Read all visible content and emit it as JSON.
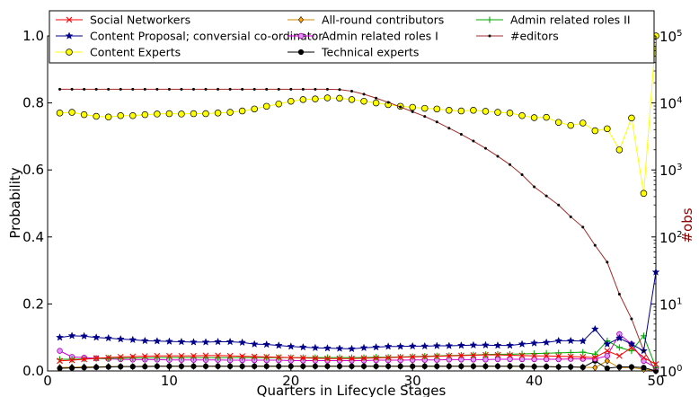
{
  "chart_data": {
    "type": "line",
    "title": "",
    "xlabel": "Quarters in Lifecycle Stages",
    "ylabel": "Probability",
    "y2label": "#obs",
    "xlim": [
      0,
      50
    ],
    "ylim": [
      0,
      1.0
    ],
    "y2lim_log10": [
      0,
      5
    ],
    "y2scale": "log",
    "x_ticks": [
      0,
      10,
      20,
      30,
      40,
      50
    ],
    "y_ticks": [
      0.0,
      0.2,
      0.4,
      0.6,
      0.8,
      1.0
    ],
    "y_tick_labels": [
      "0.0",
      "0.2",
      "0.4",
      "0.6",
      "0.8",
      "1.0"
    ],
    "y2_ticks": [
      {
        "base": "10",
        "exp": "0"
      },
      {
        "base": "10",
        "exp": "1"
      },
      {
        "base": "10",
        "exp": "2"
      },
      {
        "base": "10",
        "exp": "3"
      },
      {
        "base": "10",
        "exp": "4"
      },
      {
        "base": "10",
        "exp": "5"
      }
    ],
    "grid": false,
    "legend_position": "top",
    "x": [
      1,
      2,
      3,
      4,
      5,
      6,
      7,
      8,
      9,
      10,
      11,
      12,
      13,
      14,
      15,
      16,
      17,
      18,
      19,
      20,
      21,
      22,
      23,
      24,
      25,
      26,
      27,
      28,
      29,
      30,
      31,
      32,
      33,
      34,
      35,
      36,
      37,
      38,
      39,
      40,
      41,
      42,
      43,
      44,
      45,
      46,
      47,
      48,
      49,
      50
    ],
    "series": [
      {
        "name": "Social Networkers",
        "color": "#ff0000",
        "marker": "x",
        "axis": "left",
        "values": [
          0.03,
          0.032,
          0.035,
          0.038,
          0.04,
          0.042,
          0.043,
          0.044,
          0.045,
          0.045,
          0.045,
          0.045,
          0.046,
          0.046,
          0.045,
          0.044,
          0.043,
          0.042,
          0.041,
          0.04,
          0.039,
          0.038,
          0.037,
          0.037,
          0.037,
          0.038,
          0.039,
          0.04,
          0.041,
          0.042,
          0.043,
          0.044,
          0.045,
          0.046,
          0.047,
          0.048,
          0.048,
          0.047,
          0.046,
          0.045,
          0.045,
          0.044,
          0.043,
          0.042,
          0.04,
          0.06,
          0.045,
          0.07,
          0.04,
          0.02
        ]
      },
      {
        "name": "Content Proposal; conversial co-ordinator",
        "color": "#00008b",
        "marker": "star",
        "axis": "left",
        "values": [
          0.1,
          0.105,
          0.104,
          0.1,
          0.098,
          0.095,
          0.093,
          0.09,
          0.089,
          0.088,
          0.087,
          0.086,
          0.086,
          0.087,
          0.087,
          0.085,
          0.08,
          0.079,
          0.076,
          0.073,
          0.071,
          0.069,
          0.068,
          0.067,
          0.066,
          0.069,
          0.071,
          0.073,
          0.073,
          0.074,
          0.074,
          0.075,
          0.075,
          0.076,
          0.077,
          0.077,
          0.076,
          0.076,
          0.08,
          0.083,
          0.085,
          0.09,
          0.09,
          0.089,
          0.125,
          0.08,
          0.098,
          0.08,
          0.06,
          0.295
        ]
      },
      {
        "name": "Content Experts",
        "color": "#cccc00",
        "marker": "circle-yellow",
        "axis": "left",
        "values": [
          0.77,
          0.772,
          0.765,
          0.76,
          0.758,
          0.762,
          0.762,
          0.765,
          0.767,
          0.768,
          0.767,
          0.768,
          0.768,
          0.77,
          0.772,
          0.776,
          0.782,
          0.79,
          0.797,
          0.805,
          0.81,
          0.812,
          0.815,
          0.814,
          0.81,
          0.805,
          0.8,
          0.795,
          0.79,
          0.787,
          0.784,
          0.782,
          0.778,
          0.776,
          0.778,
          0.775,
          0.772,
          0.77,
          0.762,
          0.756,
          0.757,
          0.742,
          0.733,
          0.74,
          0.717,
          0.723,
          0.66,
          0.755,
          0.53,
          1.0
        ]
      },
      {
        "name": "All-round contributors",
        "color": "#cc8800",
        "marker": "diamond",
        "axis": "left",
        "values": [
          0.01,
          0.011,
          0.012,
          0.012,
          0.013,
          0.013,
          0.013,
          0.014,
          0.014,
          0.014,
          0.014,
          0.014,
          0.014,
          0.014,
          0.014,
          0.014,
          0.014,
          0.014,
          0.014,
          0.014,
          0.014,
          0.014,
          0.014,
          0.014,
          0.014,
          0.014,
          0.014,
          0.014,
          0.014,
          0.014,
          0.014,
          0.014,
          0.014,
          0.014,
          0.014,
          0.014,
          0.014,
          0.014,
          0.013,
          0.013,
          0.013,
          0.012,
          0.012,
          0.011,
          0.01,
          0.03,
          0.01,
          0.01,
          0.005,
          0.0
        ]
      },
      {
        "name": "Admin related roles I",
        "color": "#cc00cc",
        "marker": "circle-magenta",
        "axis": "left",
        "values": [
          0.06,
          0.042,
          0.04,
          0.038,
          0.036,
          0.035,
          0.034,
          0.034,
          0.034,
          0.033,
          0.033,
          0.033,
          0.033,
          0.033,
          0.032,
          0.032,
          0.032,
          0.032,
          0.032,
          0.031,
          0.031,
          0.031,
          0.031,
          0.031,
          0.031,
          0.031,
          0.032,
          0.032,
          0.032,
          0.033,
          0.033,
          0.033,
          0.034,
          0.034,
          0.034,
          0.034,
          0.035,
          0.035,
          0.035,
          0.035,
          0.035,
          0.035,
          0.036,
          0.036,
          0.036,
          0.045,
          0.11,
          0.08,
          0.03,
          0.01
        ]
      },
      {
        "name": "Technical experts",
        "color": "#000000",
        "marker": "circle-black",
        "axis": "left",
        "values": [
          0.008,
          0.009,
          0.01,
          0.011,
          0.012,
          0.013,
          0.013,
          0.013,
          0.014,
          0.014,
          0.014,
          0.014,
          0.014,
          0.014,
          0.014,
          0.014,
          0.014,
          0.014,
          0.014,
          0.014,
          0.014,
          0.014,
          0.014,
          0.014,
          0.014,
          0.014,
          0.014,
          0.014,
          0.014,
          0.014,
          0.014,
          0.014,
          0.014,
          0.014,
          0.014,
          0.014,
          0.014,
          0.014,
          0.014,
          0.013,
          0.013,
          0.012,
          0.012,
          0.011,
          0.03,
          0.008,
          0.012,
          0.012,
          0.01,
          0.0
        ]
      },
      {
        "name": "Admin related roles II",
        "color": "#00aa00",
        "marker": "plus",
        "axis": "left",
        "values": [
          0.035,
          0.035,
          0.036,
          0.037,
          0.038,
          0.038,
          0.039,
          0.039,
          0.04,
          0.04,
          0.04,
          0.04,
          0.04,
          0.04,
          0.04,
          0.04,
          0.04,
          0.04,
          0.04,
          0.04,
          0.04,
          0.04,
          0.04,
          0.04,
          0.04,
          0.04,
          0.041,
          0.041,
          0.042,
          0.043,
          0.044,
          0.045,
          0.046,
          0.047,
          0.048,
          0.049,
          0.05,
          0.05,
          0.051,
          0.052,
          0.053,
          0.054,
          0.055,
          0.056,
          0.05,
          0.09,
          0.07,
          0.06,
          0.105,
          0.01
        ]
      },
      {
        "name": "#editors",
        "color": "#8b0000",
        "marker": "dot",
        "axis": "right",
        "values": [
          16000,
          16000,
          16000,
          16000,
          16000,
          16000,
          16000,
          16000,
          16000,
          16000,
          16000,
          16000,
          16000,
          16000,
          16000,
          16000,
          16000,
          16000,
          16000,
          16000,
          16000,
          16000,
          16000,
          15800,
          15000,
          13500,
          11800,
          10200,
          8700,
          7400,
          6300,
          5200,
          4200,
          3400,
          2700,
          2100,
          1600,
          1200,
          850,
          560,
          410,
          300,
          200,
          140,
          75,
          42,
          14,
          6,
          2,
          1
        ]
      }
    ]
  }
}
